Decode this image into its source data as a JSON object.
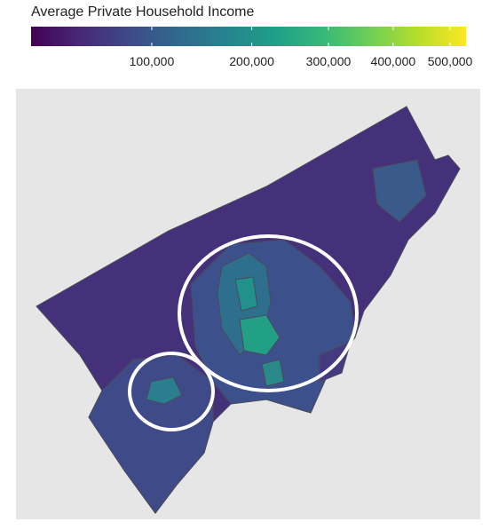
{
  "legend": {
    "title": "Average Private Household Income",
    "scale": "sqrt",
    "range": [
      25000,
      530000
    ],
    "colors": [
      "#440154",
      "#482878",
      "#3e4989",
      "#31688e",
      "#26828e",
      "#1f9e89",
      "#35b779",
      "#6ece58",
      "#b5de2b",
      "#fde725"
    ],
    "ticks": [
      {
        "value": 100000,
        "label": "100,000"
      },
      {
        "value": 200000,
        "label": "200,000"
      },
      {
        "value": 300000,
        "label": "300,000"
      },
      {
        "value": 400000,
        "label": "400,000"
      },
      {
        "value": 500000,
        "label": "500,000"
      }
    ]
  }
}
